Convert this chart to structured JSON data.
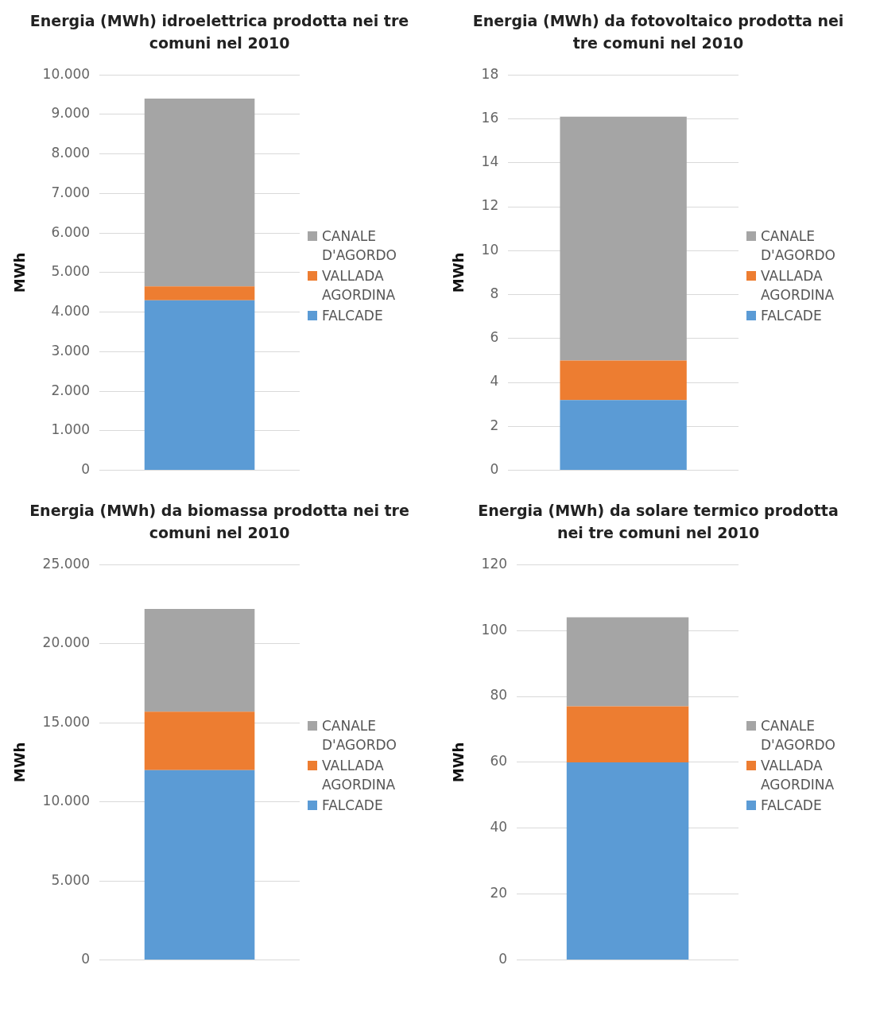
{
  "chart_data": [
    {
      "type": "bar",
      "title": "Energia (MWh) idroelettrica prodotta nei tre comuni nel 2010",
      "ylabel": "MWh",
      "categories": [
        null
      ],
      "stacked": true,
      "legend": "right",
      "grid": "y",
      "ylim": [
        0,
        10000
      ],
      "yticks": [
        0,
        {
          "value": 1000,
          "label": "1.000"
        },
        {
          "value": 2000,
          "label": "2.000"
        },
        {
          "value": 3000,
          "label": "3.000"
        },
        {
          "value": 4000,
          "label": "4.000"
        },
        {
          "value": 5000,
          "label": "5.000"
        },
        {
          "value": 6000,
          "label": "6.000"
        },
        {
          "value": 7000,
          "label": "7.000"
        },
        {
          "value": 8000,
          "label": "8.000"
        },
        {
          "value": 9000,
          "label": "9.000"
        },
        {
          "value": 10000,
          "label": "10.000"
        }
      ],
      "series": [
        {
          "name": "FALCADE",
          "color": "#5b9bd5",
          "values": [
            4300
          ]
        },
        {
          "name": "VALLADA AGORDINA",
          "color": "#ed7d31",
          "values": [
            350
          ]
        },
        {
          "name": "CANALE D'AGORDO",
          "color": "#a5a5a5",
          "values": [
            4750
          ]
        }
      ]
    },
    {
      "type": "bar",
      "title": "Energia (MWh) da fotovoltaico prodotta nei tre comuni nel 2010",
      "ylabel": "MWh",
      "categories": [
        null
      ],
      "stacked": true,
      "legend": "right",
      "grid": "y",
      "ylim": [
        0,
        18
      ],
      "yticks": [
        0,
        2,
        4,
        6,
        8,
        10,
        12,
        14,
        16,
        18
      ],
      "series": [
        {
          "name": "FALCADE",
          "color": "#5b9bd5",
          "values": [
            3.2
          ]
        },
        {
          "name": "VALLADA AGORDINA",
          "color": "#ed7d31",
          "values": [
            1.8
          ]
        },
        {
          "name": "CANALE D'AGORDO",
          "color": "#a5a5a5",
          "values": [
            11.1
          ]
        }
      ]
    },
    {
      "type": "bar",
      "title": "Energia (MWh) da biomassa prodotta nei tre comuni nel 2010",
      "ylabel": "MWh",
      "categories": [
        null
      ],
      "stacked": true,
      "legend": "right",
      "grid": "y",
      "ylim": [
        0,
        25000
      ],
      "yticks": [
        0,
        {
          "value": 5000,
          "label": "5.000"
        },
        {
          "value": 10000,
          "label": "10.000"
        },
        {
          "value": 15000,
          "label": "15.000"
        },
        {
          "value": 20000,
          "label": "20.000"
        },
        {
          "value": 25000,
          "label": "25.000"
        }
      ],
      "series": [
        {
          "name": "FALCADE",
          "color": "#5b9bd5",
          "values": [
            12000
          ]
        },
        {
          "name": "VALLADA AGORDINA",
          "color": "#ed7d31",
          "values": [
            3700
          ]
        },
        {
          "name": "CANALE D'AGORDO",
          "color": "#a5a5a5",
          "values": [
            6500
          ]
        }
      ]
    },
    {
      "type": "bar",
      "title": "Energia (MWh) da solare termico prodotta nei tre comuni nel 2010",
      "ylabel": "MWh",
      "categories": [
        null
      ],
      "stacked": true,
      "legend": "right",
      "grid": "y",
      "ylim": [
        0,
        120
      ],
      "yticks": [
        0,
        20,
        40,
        60,
        80,
        100,
        120
      ],
      "series": [
        {
          "name": "FALCADE",
          "color": "#5b9bd5",
          "values": [
            60
          ]
        },
        {
          "name": "VALLADA AGORDINA",
          "color": "#ed7d31",
          "values": [
            17
          ]
        },
        {
          "name": "CANALE D'AGORDO",
          "color": "#a5a5a5",
          "values": [
            27
          ]
        }
      ]
    }
  ]
}
